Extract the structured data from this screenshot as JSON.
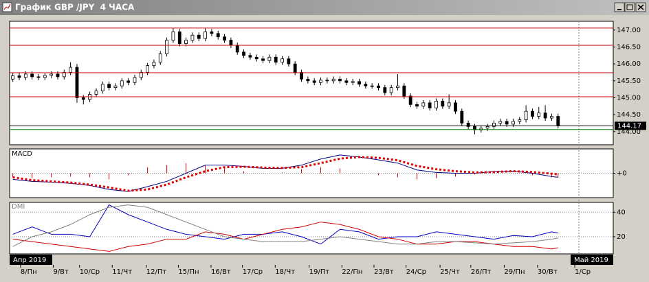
{
  "window": {
    "title": "График GBP /JPY  4 ЧАСА"
  },
  "chart_data": [
    {
      "type": "candlestick",
      "open": [
        145.55,
        145.65,
        145.6,
        145.7,
        145.62,
        145.6,
        145.66,
        145.7,
        145.62,
        145.75,
        145.9,
        145.0,
        144.95,
        145.1,
        145.2,
        145.4,
        145.3,
        145.35,
        145.5,
        145.45,
        145.6,
        145.75,
        145.95,
        146.05,
        146.3,
        146.7,
        146.95,
        146.6,
        146.7,
        146.85,
        146.75,
        146.95,
        146.9,
        146.8,
        146.7,
        146.55,
        146.35,
        146.25,
        146.2,
        146.15,
        146.1,
        146.2,
        146.05,
        146.15,
        146.0,
        145.75,
        145.55,
        145.5,
        145.45,
        145.52,
        145.5,
        145.55,
        145.5,
        145.45,
        145.48,
        145.4,
        145.35,
        145.35,
        145.3,
        145.15,
        145.3,
        145.35,
        145.05,
        144.8,
        144.75,
        144.85,
        144.7,
        144.9,
        144.75,
        144.85,
        144.6,
        144.25,
        144.15,
        144.05,
        144.1,
        144.15,
        144.25,
        144.3,
        144.22,
        144.3,
        144.35,
        144.6,
        144.45,
        144.55,
        144.4,
        144.45
      ],
      "high": [
        145.73,
        145.73,
        145.78,
        145.78,
        145.7,
        145.74,
        145.78,
        145.78,
        145.83,
        146.05,
        146.0,
        145.08,
        145.18,
        145.28,
        145.48,
        145.48,
        145.43,
        145.58,
        145.58,
        145.68,
        145.83,
        146.03,
        146.13,
        146.38,
        146.78,
        147.05,
        147.03,
        146.78,
        146.93,
        146.93,
        147.05,
        147.03,
        146.98,
        146.88,
        146.78,
        146.63,
        146.43,
        146.33,
        146.28,
        146.23,
        146.28,
        146.28,
        146.23,
        146.23,
        146.08,
        145.83,
        145.63,
        145.58,
        145.6,
        145.6,
        145.63,
        145.63,
        145.58,
        145.56,
        145.56,
        145.48,
        145.43,
        145.43,
        145.38,
        145.38,
        145.7,
        145.43,
        145.13,
        144.88,
        144.93,
        144.93,
        144.98,
        144.98,
        145.1,
        144.93,
        144.68,
        144.33,
        144.23,
        144.18,
        144.23,
        144.33,
        144.38,
        144.38,
        144.38,
        144.43,
        144.78,
        144.68,
        144.73,
        144.78,
        144.53,
        144.53
      ],
      "low": [
        145.47,
        145.52,
        145.52,
        145.54,
        145.52,
        145.52,
        145.58,
        145.54,
        145.54,
        145.67,
        144.85,
        144.8,
        144.87,
        145.02,
        145.12,
        145.22,
        145.22,
        145.27,
        145.37,
        145.37,
        145.52,
        145.67,
        145.87,
        145.97,
        146.22,
        146.62,
        146.52,
        146.52,
        146.62,
        146.67,
        146.67,
        146.82,
        146.72,
        146.62,
        146.47,
        146.27,
        146.17,
        146.12,
        146.07,
        146.02,
        146.02,
        145.97,
        145.97,
        145.92,
        145.67,
        145.47,
        145.42,
        145.37,
        145.37,
        145.42,
        145.42,
        145.42,
        145.37,
        145.37,
        145.32,
        145.27,
        145.27,
        145.22,
        145.07,
        145.07,
        145.22,
        144.97,
        144.72,
        144.67,
        144.67,
        144.62,
        144.62,
        144.67,
        144.67,
        144.52,
        144.17,
        144.07,
        143.92,
        143.97,
        144.02,
        144.07,
        144.17,
        144.14,
        144.14,
        144.22,
        144.27,
        144.37,
        144.37,
        144.32,
        144.32,
        144.09
      ],
      "close": [
        145.65,
        145.6,
        145.7,
        145.62,
        145.6,
        145.66,
        145.7,
        145.62,
        145.75,
        145.9,
        145.0,
        144.95,
        145.1,
        145.2,
        145.4,
        145.3,
        145.35,
        145.5,
        145.45,
        145.6,
        145.75,
        145.95,
        146.05,
        146.3,
        146.7,
        146.95,
        146.6,
        146.7,
        146.85,
        146.75,
        146.95,
        146.9,
        146.8,
        146.7,
        146.55,
        146.35,
        146.25,
        146.2,
        146.15,
        146.1,
        146.2,
        146.05,
        146.15,
        146.0,
        145.75,
        145.55,
        145.5,
        145.45,
        145.52,
        145.5,
        145.55,
        145.5,
        145.45,
        145.48,
        145.4,
        145.35,
        145.35,
        145.3,
        145.15,
        145.3,
        145.35,
        145.05,
        144.8,
        144.75,
        144.85,
        144.7,
        144.9,
        144.75,
        144.85,
        144.6,
        144.25,
        144.15,
        144.05,
        144.1,
        144.15,
        144.25,
        144.3,
        144.22,
        144.3,
        144.35,
        144.6,
        144.45,
        144.55,
        144.4,
        144.45,
        144.17
      ],
      "up_color": "#ffffff",
      "down_color": "#000000",
      "xlim": [
        -0.5,
        93.6
      ],
      "ylim": [
        143.61,
        147.26
      ],
      "yticks": [
        {
          "value": 147,
          "label": "147.00"
        },
        {
          "value": 146.5,
          "label": "146.50"
        },
        {
          "value": 146,
          "label": "146.00"
        },
        {
          "value": 145.5,
          "label": "145.50"
        },
        {
          "value": 145,
          "label": "145.00"
        },
        {
          "value": 144.5,
          "label": "144.50"
        },
        {
          "value": 144,
          "label": "144.00"
        }
      ],
      "xticks": [
        {
          "value": 1.2,
          "label": "8/Пн"
        },
        {
          "value": 6.3,
          "label": "9/Вт"
        },
        {
          "value": 10.4,
          "label": "10/Ср"
        },
        {
          "value": 15.5,
          "label": "11/Чт"
        },
        {
          "value": 20.8,
          "label": "12/Пт"
        },
        {
          "value": 25.8,
          "label": "15/Пн"
        },
        {
          "value": 30.9,
          "label": "16/Вт"
        },
        {
          "value": 35.8,
          "label": "17/Ср"
        },
        {
          "value": 40.9,
          "label": "18/Чт"
        },
        {
          "value": 46.2,
          "label": "19/Пт"
        },
        {
          "value": 51.3,
          "label": "22/Пн"
        },
        {
          "value": 56.3,
          "label": "23/Вт"
        },
        {
          "value": 61.3,
          "label": "24/Ср"
        },
        {
          "value": 66.6,
          "label": "25/Чт"
        },
        {
          "value": 71.4,
          "label": "26/Пт"
        },
        {
          "value": 76.6,
          "label": "29/Пн"
        },
        {
          "value": 81.8,
          "label": "30/Вт"
        },
        {
          "value": 87.6,
          "label": "1/Ср"
        }
      ],
      "hlines": [
        {
          "value": 147.06,
          "color": "#c00000"
        },
        {
          "value": 146.55,
          "color": "#c00000"
        },
        {
          "value": 145.74,
          "color": "#c00000"
        },
        {
          "value": 145.03,
          "color": "#c00000"
        },
        {
          "value": 144.06,
          "color": "#008000"
        }
      ],
      "last_price": 144.17,
      "month_labels": [
        "Апр 2019",
        "Май 2019"
      ]
    },
    {
      "type": "line",
      "title": "MACD",
      "x": [
        0,
        3,
        6,
        9,
        12,
        15,
        18,
        21,
        24,
        27,
        30,
        33,
        36,
        39,
        42,
        45,
        48,
        51,
        54,
        57,
        60,
        63,
        66,
        69,
        72,
        75,
        78,
        81,
        84,
        85
      ],
      "series": [
        {
          "color": "#000080",
          "values": [
            -0.15,
            -0.2,
            -0.22,
            -0.25,
            -0.3,
            -0.4,
            -0.45,
            -0.33,
            -0.2,
            0.0,
            0.2,
            0.2,
            0.17,
            0.12,
            0.12,
            0.2,
            0.35,
            0.45,
            0.4,
            0.33,
            0.25,
            0.08,
            0.02,
            0.0,
            0.0,
            0.04,
            0.05,
            0.0,
            -0.08,
            -0.1
          ]
        },
        {
          "color": "#e00000",
          "dotted": true,
          "values": [
            -0.1,
            -0.17,
            -0.2,
            -0.23,
            -0.28,
            -0.35,
            -0.43,
            -0.4,
            -0.28,
            -0.1,
            0.05,
            0.15,
            0.16,
            0.14,
            0.13,
            0.15,
            0.25,
            0.36,
            0.4,
            0.38,
            0.32,
            0.18,
            0.1,
            0.05,
            0.02,
            0.03,
            0.05,
            0.03,
            -0.01,
            -0.03
          ]
        }
      ],
      "histogram": {
        "color": "#e00000",
        "values": [
          -0.1,
          -0.12,
          -0.1,
          -0.08,
          -0.1,
          -0.15,
          -0.05,
          0.15,
          0.2,
          0.25,
          0.2,
          0.15,
          0.05,
          0.0,
          0.02,
          0.1,
          0.15,
          0.12,
          0.0,
          -0.05,
          -0.1,
          -0.15,
          -0.12,
          -0.08,
          -0.03,
          0.02,
          0.0,
          -0.05,
          -0.1,
          -0.1
        ]
      },
      "xlim": [
        -0.5,
        93.6
      ],
      "ylim": [
        -0.6,
        0.6
      ],
      "yticks": [
        {
          "value": 0,
          "label": "+0"
        }
      ],
      "grid": true
    },
    {
      "type": "line",
      "title": "DMI",
      "x": [
        0,
        3,
        6,
        9,
        12,
        15,
        18,
        21,
        24,
        27,
        30,
        33,
        36,
        39,
        42,
        45,
        48,
        51,
        54,
        57,
        60,
        63,
        66,
        69,
        72,
        75,
        78,
        81,
        84,
        85
      ],
      "series": [
        {
          "color": "#0000c0",
          "values": [
            22,
            28,
            22,
            22,
            20,
            46,
            38,
            32,
            26,
            22,
            20,
            18,
            22,
            22,
            24,
            20,
            14,
            26,
            24,
            18,
            20,
            20,
            24,
            22,
            20,
            18,
            21,
            20,
            24,
            23
          ]
        },
        {
          "color": "#d00000",
          "values": [
            18,
            16,
            14,
            12,
            10,
            8,
            12,
            14,
            18,
            18,
            24,
            22,
            18,
            22,
            26,
            28,
            32,
            30,
            26,
            20,
            18,
            14,
            14,
            16,
            16,
            14,
            12,
            12,
            10,
            11
          ]
        },
        {
          "color": "#808080",
          "values": [
            12,
            20,
            24,
            30,
            38,
            44,
            46,
            44,
            38,
            32,
            26,
            20,
            18,
            16,
            16,
            16,
            18,
            20,
            18,
            16,
            14,
            14,
            16,
            16,
            15,
            14,
            15,
            16,
            18,
            19
          ]
        }
      ],
      "xlim": [
        -0.5,
        93.6
      ],
      "ylim": [
        6,
        48
      ],
      "yticks": [
        20,
        40
      ],
      "grid": true
    }
  ]
}
